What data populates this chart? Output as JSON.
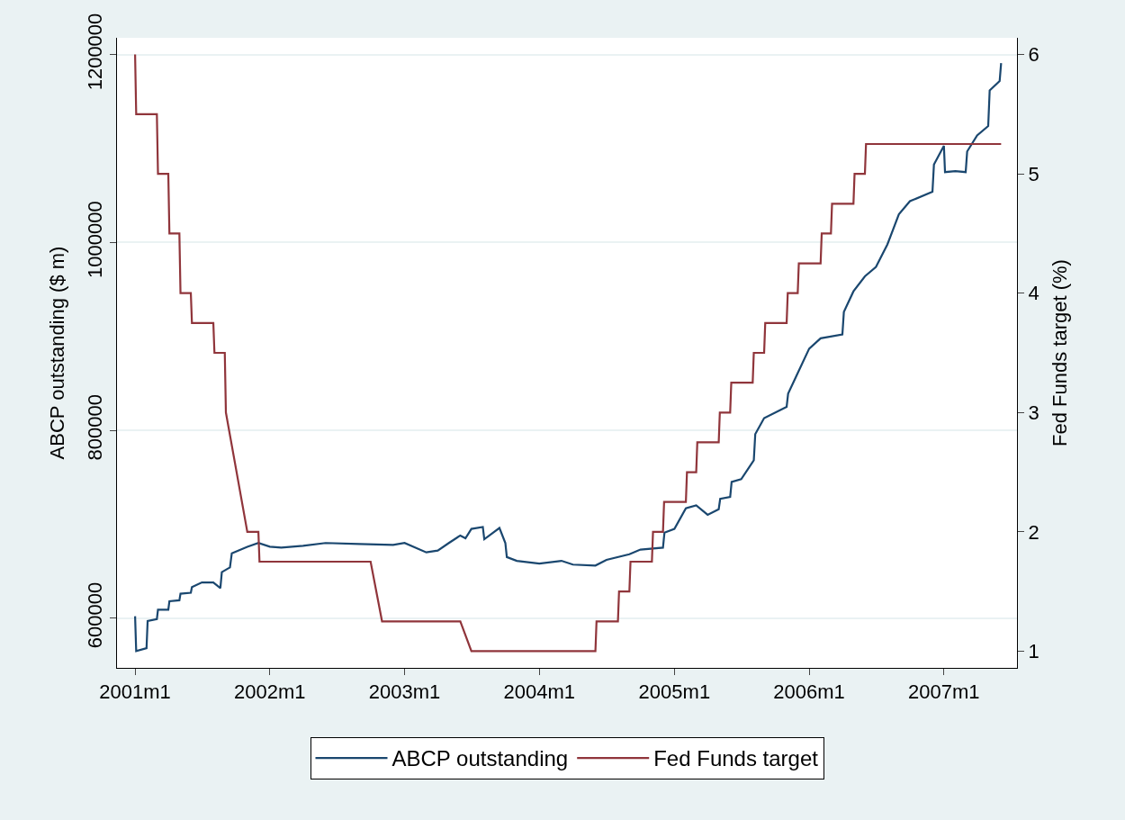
{
  "chart_data": {
    "type": "line",
    "xlabel": null,
    "ylabel": "ABCP outstanding ($ m)",
    "y2label": "Fed Funds target (%)",
    "xlim": [
      "2000-11-13",
      "2007-07-18"
    ],
    "xticks": [
      {
        "value": "2001-01-01",
        "label": "2001m1"
      },
      {
        "value": "2002-01-01",
        "label": "2002m1"
      },
      {
        "value": "2003-01-01",
        "label": "2003m1"
      },
      {
        "value": "2004-01-01",
        "label": "2004m1"
      },
      {
        "value": "2005-01-01",
        "label": "2005m1"
      },
      {
        "value": "2006-01-01",
        "label": "2006m1"
      },
      {
        "value": "2007-01-01",
        "label": "2007m1"
      }
    ],
    "ylim": [
      547000,
      1218000
    ],
    "yticks": [
      600000,
      800000,
      1000000,
      1200000
    ],
    "y2lim": [
      0.86,
      6.14
    ],
    "y2ticks": [
      1,
      2,
      3,
      4,
      5,
      6
    ],
    "grid": "y",
    "legend": "bottom",
    "marker": "none",
    "line_style": "solid",
    "series": [
      {
        "name": "ABCP outstanding",
        "color": "#1a476f",
        "axis": "y",
        "x": [
          "2001-01-01",
          "2001-01-04",
          "2001-02-01",
          "2001-02-04",
          "2001-03-01",
          "2001-03-04",
          "2001-04-01",
          "2001-04-04",
          "2001-05-01",
          "2001-05-04",
          "2001-06-01",
          "2001-06-04",
          "2001-07-01",
          "2001-08-01",
          "2001-08-20",
          "2001-08-24",
          "2001-09-15",
          "2001-09-20",
          "2001-11-01",
          "2001-12-01",
          "2002-01-01",
          "2002-02-01",
          "2002-04-01",
          "2002-06-01",
          "2002-09-01",
          "2002-12-01",
          "2003-01-01",
          "2003-03-01",
          "2003-04-01",
          "2003-05-01",
          "2003-06-01",
          "2003-06-15",
          "2003-07-01",
          "2003-08-01",
          "2003-08-05",
          "2003-09-15",
          "2003-10-01",
          "2003-10-05",
          "2003-11-01",
          "2004-01-01",
          "2004-03-01",
          "2004-04-01",
          "2004-06-01",
          "2004-07-01",
          "2004-09-01",
          "2004-10-01",
          "2004-12-01",
          "2004-12-05",
          "2005-01-01",
          "2005-02-01",
          "2005-03-01",
          "2005-04-01",
          "2005-05-01",
          "2005-05-05",
          "2005-06-01",
          "2005-06-05",
          "2005-07-01",
          "2005-08-04",
          "2005-08-08",
          "2005-09-01",
          "2005-11-01",
          "2005-11-05",
          "2005-12-01",
          "2006-01-01",
          "2006-02-01",
          "2006-04-01",
          "2006-04-05",
          "2006-05-01",
          "2006-06-01",
          "2006-07-01",
          "2006-08-01",
          "2006-09-01",
          "2006-10-01",
          "2006-12-01",
          "2006-12-05",
          "2007-01-01",
          "2007-01-04",
          "2007-02-01",
          "2007-03-01",
          "2007-03-05",
          "2007-04-01",
          "2007-05-01",
          "2007-05-05",
          "2007-06-01",
          "2007-06-05"
        ],
        "values": [
          602000,
          565000,
          568000,
          597000,
          599000,
          609000,
          609000,
          618000,
          619000,
          626000,
          627000,
          633000,
          638000,
          638000,
          632000,
          649000,
          654000,
          669000,
          676000,
          680000,
          676000,
          675000,
          677000,
          680000,
          679000,
          678000,
          680000,
          670000,
          672000,
          680000,
          688000,
          685000,
          695000,
          697000,
          684000,
          696000,
          680000,
          665000,
          661000,
          658000,
          661000,
          657000,
          656000,
          662000,
          668000,
          673000,
          675000,
          691000,
          695000,
          717000,
          720000,
          710000,
          716000,
          727000,
          729000,
          745000,
          748000,
          768000,
          796000,
          813000,
          825000,
          839000,
          861000,
          887000,
          898000,
          902000,
          926000,
          948000,
          964000,
          974000,
          998000,
          1030000,
          1044000,
          1054000,
          1083000,
          1103000,
          1075000,
          1076000,
          1075000,
          1097000,
          1114000,
          1124000,
          1162000,
          1172000,
          1191000
        ]
      },
      {
        "name": "Fed Funds target",
        "color": "#90353b",
        "axis": "y2",
        "x": [
          "2001-01-01",
          "2001-01-04",
          "2001-03-01",
          "2001-03-04",
          "2001-04-01",
          "2001-04-04",
          "2001-05-01",
          "2001-05-04",
          "2001-06-01",
          "2001-06-04",
          "2001-08-01",
          "2001-08-04",
          "2001-09-01",
          "2001-09-04",
          "2001-11-01",
          "2001-12-01",
          "2001-12-04",
          "2002-10-01",
          "2002-11-01",
          "2003-06-01",
          "2003-07-01",
          "2004-06-01",
          "2004-06-04",
          "2004-08-01",
          "2004-08-04",
          "2004-09-01",
          "2004-09-04",
          "2004-11-01",
          "2004-11-04",
          "2004-12-01",
          "2004-12-04",
          "2005-02-01",
          "2005-02-04",
          "2005-03-01",
          "2005-03-04",
          "2005-05-01",
          "2005-05-04",
          "2005-06-01",
          "2005-06-04",
          "2005-08-01",
          "2005-08-04",
          "2005-09-01",
          "2005-09-04",
          "2005-11-01",
          "2005-11-04",
          "2005-12-01",
          "2005-12-04",
          "2006-02-01",
          "2006-02-04",
          "2006-03-01",
          "2006-03-04",
          "2006-05-01",
          "2006-05-04",
          "2006-06-01",
          "2006-06-04",
          "2007-06-05"
        ],
        "values": [
          6,
          5.5,
          5.5,
          5,
          5,
          4.5,
          4.5,
          4,
          4,
          3.75,
          3.75,
          3.5,
          3.5,
          3,
          2,
          2,
          1.75,
          1.75,
          1.25,
          1.25,
          1,
          1,
          1.25,
          1.25,
          1.5,
          1.5,
          1.75,
          1.75,
          2,
          2,
          2.25,
          2.25,
          2.5,
          2.5,
          2.75,
          2.75,
          3,
          3,
          3.25,
          3.25,
          3.5,
          3.5,
          3.75,
          3.75,
          4,
          4,
          4.25,
          4.25,
          4.5,
          4.5,
          4.75,
          4.75,
          5,
          5,
          5.25,
          5.25
        ]
      }
    ]
  }
}
